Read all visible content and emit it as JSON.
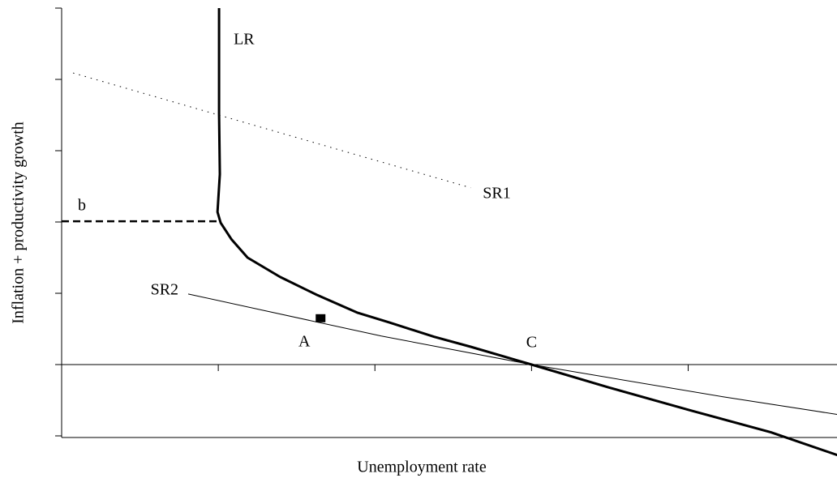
{
  "chart_data": {
    "type": "line",
    "x_label": "Unemployment rate",
    "y_label": "Inflation + productivity growth",
    "xlim": [
      0,
      4.95
    ],
    "ylim": [
      -1,
      5
    ],
    "xticks": [
      1,
      2,
      3,
      4
    ],
    "yticks": [
      -1,
      0,
      1,
      2,
      3,
      4,
      5
    ],
    "series": [
      {
        "name": "LR",
        "color": "#000000",
        "width": 3,
        "dash": "solid",
        "x": [
          1.005,
          1.005,
          1.01,
          0.995,
          1.015,
          1.083,
          1.187,
          1.394,
          1.627,
          1.886,
          2.093,
          2.378,
          2.611,
          3.0,
          3.492,
          4.01,
          4.528,
          4.953
        ],
        "values": [
          5.0,
          3.52,
          2.67,
          2.14,
          1.99,
          1.76,
          1.5,
          1.23,
          0.98,
          0.73,
          0.59,
          0.39,
          0.25,
          0,
          -0.32,
          -0.64,
          -0.95,
          -1.27
        ]
      },
      {
        "name": "SR1",
        "color": "#000000",
        "width": 1,
        "dash": "dotted",
        "x": [
          0.073,
          2.611
        ],
        "values": [
          4.09,
          2.48
        ]
      },
      {
        "name": "SR2",
        "color": "#000000",
        "width": 1,
        "dash": "solid",
        "x": [
          0.808,
          2.041,
          3.0,
          4.218,
          4.953
        ],
        "values": [
          0.99,
          0.4,
          0,
          -0.45,
          -0.7
        ]
      },
      {
        "name": "b",
        "color": "#000000",
        "width": 2.5,
        "dash": "dashed",
        "x": [
          0,
          1.005
        ],
        "values": [
          2.01,
          2.01
        ]
      }
    ],
    "points": [
      {
        "text": "A",
        "x": 1.653,
        "y": 0.65,
        "marker": "square"
      },
      {
        "text": "C",
        "x": 3.0,
        "y": 0,
        "marker": "none"
      }
    ]
  }
}
